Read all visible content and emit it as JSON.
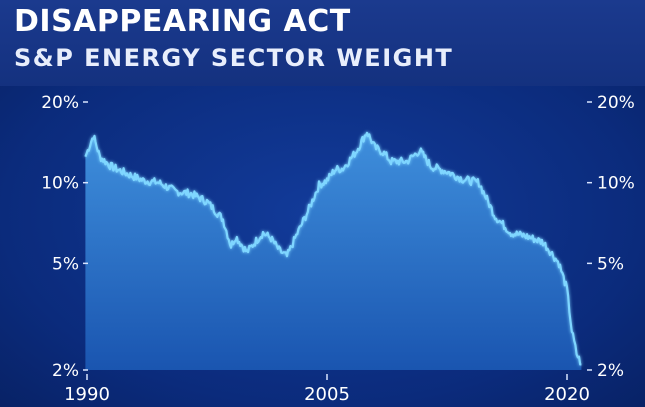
{
  "header": {
    "title": "DISAPPEARING ACT",
    "subtitle": "S&P ENERGY SECTOR WEIGHT"
  },
  "colors": {
    "background": "#0b2b7c",
    "line": "#7fd6ff",
    "fill_top": "#3f8fdc",
    "fill_bottom": "#1a55b0"
  },
  "chart_data": {
    "type": "area",
    "title": "DISAPPEARING ACT",
    "subtitle": "S&P ENERGY SECTOR WEIGHT",
    "xlabel": "",
    "ylabel": "",
    "y_scale": "log",
    "xlim": [
      1990,
      2021
    ],
    "ylim": [
      2,
      20
    ],
    "y_ticks": [
      {
        "value": 20,
        "label": "20%"
      },
      {
        "value": 10,
        "label": "10%"
      },
      {
        "value": 5,
        "label": "5%"
      },
      {
        "value": 2,
        "label": "2%"
      }
    ],
    "x_ticks": [
      {
        "value": 1990,
        "label": "1990"
      },
      {
        "value": 2005,
        "label": "2005"
      },
      {
        "value": 2020,
        "label": "2020"
      }
    ],
    "y_axis_sides": [
      "left",
      "right"
    ],
    "grid": false,
    "series": [
      {
        "x": [
          1989.9,
          1990.4,
          1990.8,
          1991.5,
          1992.5,
          1993.5,
          1994.5,
          1995.5,
          1996.5,
          1997.5,
          1998.5,
          1999.0,
          1999.3,
          2000.0,
          2000.5,
          2001.0,
          2001.5,
          2002.0,
          2002.5,
          2003.0,
          2003.8,
          2004.5,
          2005.0,
          2005.5,
          2006.0,
          2006.8,
          2007.5,
          2008.0,
          2008.5,
          2009.0,
          2010.0,
          2010.8,
          2011.5,
          2012.5,
          2013.5,
          2014.5,
          2015.5,
          2016.5,
          2017.5,
          2018.5,
          2019.0,
          2019.5,
          2020.0,
          2020.3,
          2020.6,
          2020.9
        ],
        "y": [
          12.5,
          15.0,
          12.5,
          11.5,
          10.8,
          10.2,
          10.0,
          9.3,
          9.1,
          8.5,
          7.3,
          5.8,
          6.3,
          5.5,
          6.0,
          6.5,
          6.2,
          5.6,
          5.3,
          6.2,
          7.8,
          9.8,
          10.2,
          11.2,
          11.3,
          13.0,
          15.5,
          13.5,
          13.0,
          12.0,
          12.0,
          13.2,
          11.5,
          11.0,
          10.3,
          10.0,
          7.5,
          6.5,
          6.3,
          6.0,
          5.5,
          5.0,
          4.0,
          2.8,
          2.3,
          2.1
        ]
      }
    ]
  }
}
